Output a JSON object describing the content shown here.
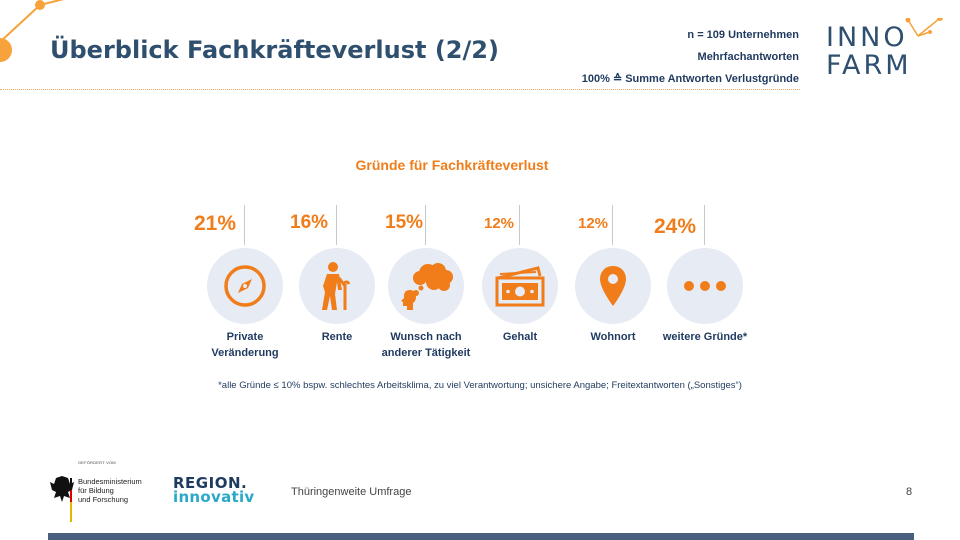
{
  "header": {
    "title": "Überblick Fachkräfteverlust (2/2)",
    "meta_lines": [
      "n = 109 Unternehmen",
      "Mehrfachantworten",
      "100% ≙ Summe Antworten Verlustgründe"
    ]
  },
  "logo": {
    "line1": "INNO",
    "line2": "FARM"
  },
  "section_title": "Gründe für Fachkräfteverlust",
  "reasons": [
    {
      "percent": "21%",
      "value": 21,
      "label_lines": [
        "Private",
        "Veränderung"
      ],
      "icon": "compass-icon"
    },
    {
      "percent": "16%",
      "value": 16,
      "label_lines": [
        "Rente"
      ],
      "icon": "elderly-person-icon"
    },
    {
      "percent": "15%",
      "value": 15,
      "label_lines": [
        "Wunsch nach",
        "anderer Tätigkeit"
      ],
      "icon": "thinking-head-icon"
    },
    {
      "percent": "12%",
      "value": 12,
      "label_lines": [
        "Gehalt"
      ],
      "icon": "money-icon"
    },
    {
      "percent": "12%",
      "value": 12,
      "label_lines": [
        "Wohnort"
      ],
      "icon": "location-pin-icon"
    },
    {
      "percent": "24%",
      "value": 24,
      "label_lines": [
        "weitere Gründe*"
      ],
      "icon": "more-dots-icon"
    }
  ],
  "footnote": "*alle Gründe ≤ 10% bspw. schlechtes Arbeitsklima, zu viel Verantwortung; unsichere Angabe; Freitextantworten („Sonstiges“)",
  "footer": {
    "funded_by": "GEFÖRDERT VOM",
    "ministry_lines": [
      "Bundesministerium",
      "für Bildung",
      "und Forschung"
    ],
    "region_line1": "REGION.",
    "region_line2": "innovativ",
    "survey": "Thüringenweite Umfrage",
    "page": "8"
  },
  "colors": {
    "accent": "#f07d1a",
    "navy": "#1f3a5f",
    "circle": "#e6ebf4",
    "bar": "#4a5f7f"
  }
}
